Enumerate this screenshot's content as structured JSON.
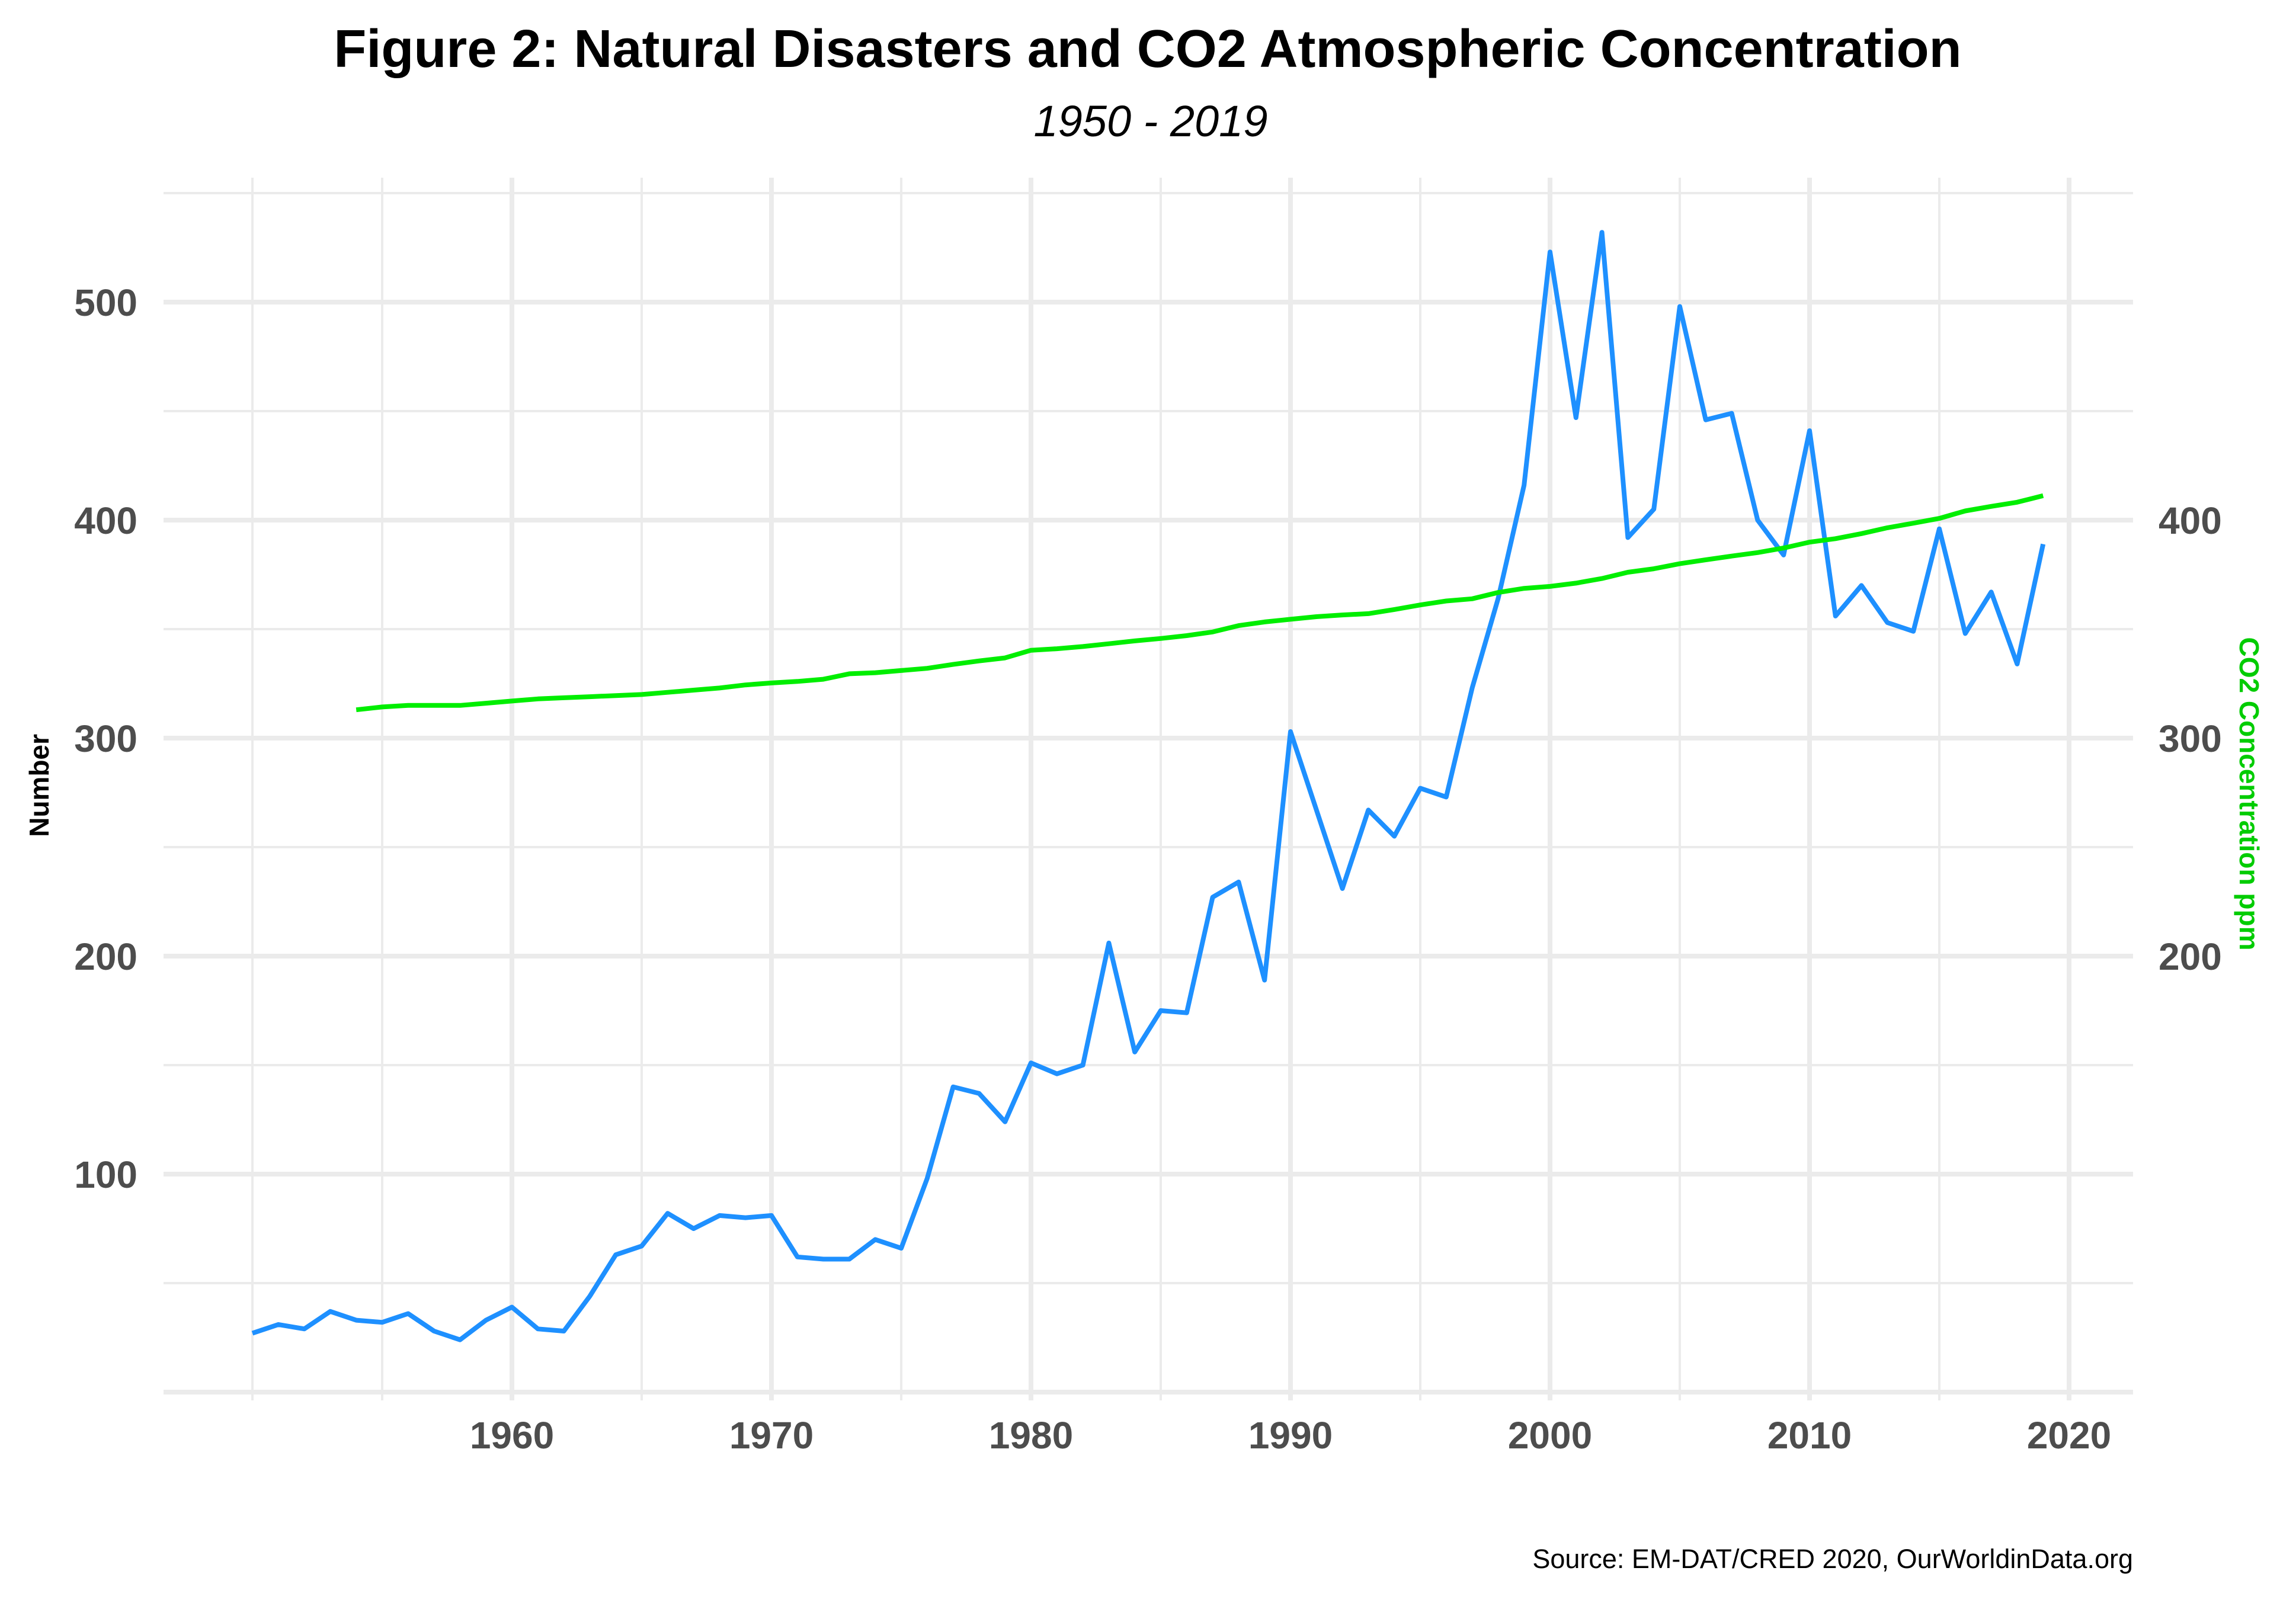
{
  "chart_data": {
    "type": "line",
    "title": "Figure 2: Natural Disasters and CO2 Atmospheric Concentration",
    "subtitle": "1950 - 2019",
    "xlabel": "",
    "ylabel": "Number",
    "y2label": "CO2 Concentration ppm",
    "caption": "Source: EM-DAT/CRED 2020, OurWorldinData.org",
    "xlim": [
      1946.6,
      2022.5
    ],
    "ylim": [
      0,
      560
    ],
    "x_ticks": [
      1960,
      1970,
      1980,
      1990,
      2000,
      2010,
      2020
    ],
    "x_minor_ticks": [
      1950,
      1955,
      1965,
      1975,
      1985,
      1995,
      2005,
      2015
    ],
    "y_ticks": [
      100,
      200,
      300,
      400,
      500
    ],
    "y_minor_ticks": [
      50,
      150,
      250,
      350,
      450,
      550
    ],
    "y2_ticks": [
      200,
      300,
      400
    ],
    "grid": true,
    "legend": "none",
    "colors": {
      "disasters": "#1e90ff",
      "co2": "#00ee00",
      "co2_axis_title": "#00cc00",
      "tick_text": "#4d4d4d",
      "grid": "#ebebeb"
    },
    "series": [
      {
        "name": "Number of natural disasters",
        "axis": "left",
        "x": [
          1950,
          1951,
          1952,
          1953,
          1954,
          1955,
          1956,
          1957,
          1958,
          1959,
          1960,
          1961,
          1962,
          1963,
          1964,
          1965,
          1966,
          1967,
          1968,
          1969,
          1970,
          1971,
          1972,
          1973,
          1974,
          1975,
          1976,
          1977,
          1978,
          1979,
          1980,
          1981,
          1982,
          1983,
          1984,
          1985,
          1986,
          1987,
          1988,
          1989,
          1990,
          1991,
          1992,
          1993,
          1994,
          1995,
          1996,
          1997,
          1998,
          1999,
          2000,
          2001,
          2002,
          2003,
          2004,
          2005,
          2006,
          2007,
          2008,
          2009,
          2010,
          2011,
          2012,
          2013,
          2014,
          2015,
          2016,
          2017,
          2018,
          2019
        ],
        "values": [
          27,
          31,
          29,
          37,
          33,
          32,
          36,
          28,
          24,
          33,
          39,
          29,
          28,
          44,
          63,
          67,
          82,
          75,
          81,
          80,
          81,
          62,
          61,
          61,
          70,
          66,
          98,
          140,
          137,
          124,
          151,
          146,
          150,
          206,
          156,
          175,
          174,
          227,
          234,
          189,
          303,
          267,
          231,
          267,
          255,
          277,
          273,
          323,
          364,
          416,
          523,
          447,
          532,
          392,
          405,
          498,
          446,
          449,
          400,
          384,
          441,
          356,
          370,
          353,
          349,
          396,
          348,
          367,
          334,
          389
        ]
      },
      {
        "name": "CO2 concentration (ppm)",
        "axis": "right",
        "x": [
          1954,
          1955,
          1956,
          1957,
          1958,
          1959,
          1960,
          1961,
          1962,
          1963,
          1964,
          1965,
          1966,
          1967,
          1968,
          1969,
          1970,
          1971,
          1972,
          1973,
          1974,
          1975,
          1976,
          1977,
          1978,
          1979,
          1980,
          1981,
          1982,
          1983,
          1984,
          1985,
          1986,
          1987,
          1988,
          1989,
          1990,
          1991,
          1992,
          1993,
          1994,
          1995,
          1996,
          1997,
          1998,
          1999,
          2000,
          2001,
          2002,
          2003,
          2004,
          2005,
          2006,
          2007,
          2008,
          2009,
          2010,
          2011,
          2012,
          2013,
          2014,
          2015,
          2016,
          2017,
          2018,
          2019
        ],
        "values": [
          313,
          314.3,
          315,
          315,
          315,
          316,
          317,
          318,
          318.5,
          319,
          319.5,
          320,
          321,
          322,
          323,
          324.4,
          325.3,
          326,
          327,
          329.5,
          330,
          331,
          332,
          333.8,
          335.4,
          336.8,
          340.3,
          341,
          342,
          343.3,
          344.6,
          345.7,
          347,
          348.7,
          351.6,
          353.3,
          354.5,
          355.7,
          356.5,
          357.1,
          359,
          361.1,
          362.9,
          363.9,
          366.8,
          368.7,
          369.6,
          371.1,
          373.2,
          376.1,
          377.7,
          380,
          381.8,
          383.5,
          385.1,
          387.2,
          389.9,
          391.5,
          393.8,
          396.5,
          398.6,
          400.8,
          404.2,
          406.3,
          408.2,
          411.2
        ]
      }
    ]
  }
}
